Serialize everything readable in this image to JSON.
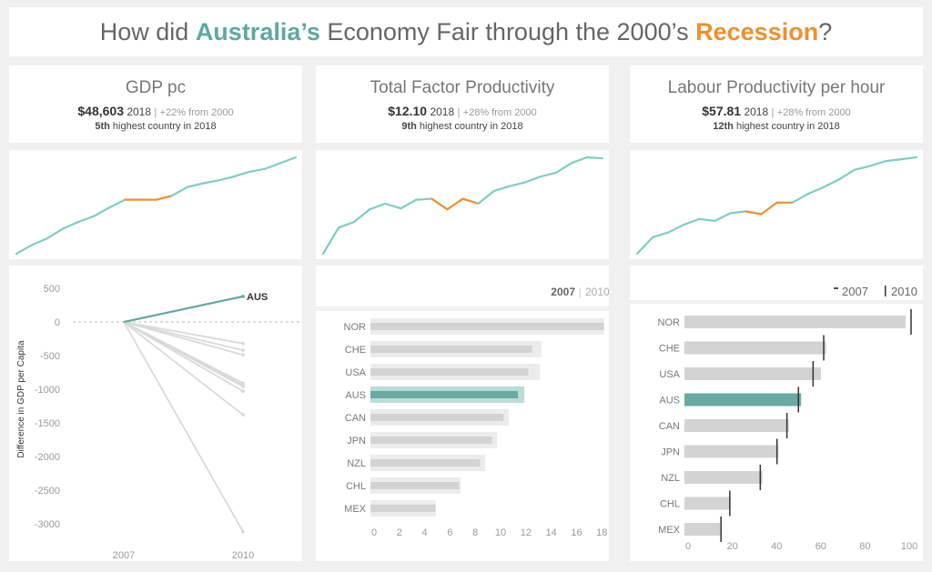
{
  "title": {
    "pre": "How did ",
    "country": "Australia’s",
    "mid": " Economy Fair through the 2000’s ",
    "recession": "Recession",
    "post": "?"
  },
  "colors": {
    "accent": "#5fa8a0",
    "line": "#7ecdc4",
    "recession": "#f28e2b",
    "grey": "#d3d3d3"
  },
  "kpis": [
    {
      "title": "GDP pc",
      "value": "$48,603",
      "year": "2018",
      "sep": "|",
      "change": "+22% from 2000",
      "rank": "5th",
      "rank_text": "highest country in 2018"
    },
    {
      "title": "Total Factor Productivity",
      "value": "$12.10",
      "year": "2018",
      "sep": "|",
      "change": "+28% from 2000",
      "rank": "9th",
      "rank_text": "highest country in 2018"
    },
    {
      "title": "Labour Productivity per hour",
      "value": "$57.81",
      "year": "2018",
      "sep": "|",
      "change": "+28% from 2000",
      "rank": "12th",
      "rank_text": "highest country in 2018"
    }
  ],
  "chart_data": [
    {
      "type": "line",
      "name": "GDP pc sparkline (relative index)",
      "x": [
        2000,
        2001,
        2002,
        2003,
        2004,
        2005,
        2006,
        2007,
        2008,
        2009,
        2010,
        2011,
        2012,
        2013,
        2014,
        2015,
        2016,
        2017,
        2018
      ],
      "values": [
        0,
        9,
        16,
        26,
        33,
        39,
        48,
        56,
        56,
        56,
        60,
        69,
        73,
        76,
        80,
        85,
        88,
        94,
        100
      ],
      "recession": [
        2007,
        2010
      ]
    },
    {
      "type": "line",
      "name": "TFP sparkline (relative index)",
      "x": [
        2000,
        2001,
        2002,
        2003,
        2004,
        2005,
        2006,
        2007,
        2008,
        2009,
        2010,
        2011,
        2012,
        2013,
        2014,
        2015,
        2016,
        2017,
        2018
      ],
      "values": [
        0,
        27,
        33,
        46,
        52,
        47,
        56,
        57,
        46,
        57,
        52,
        65,
        70,
        74,
        80,
        84,
        94,
        100,
        99
      ],
      "recession": [
        2007,
        2010
      ]
    },
    {
      "type": "line",
      "name": "Labour productivity sparkline (relative index)",
      "x": [
        2000,
        2001,
        2002,
        2003,
        2004,
        2005,
        2006,
        2007,
        2008,
        2009,
        2010,
        2011,
        2012,
        2013,
        2014,
        2015,
        2016,
        2017,
        2018
      ],
      "values": [
        0,
        17,
        22,
        30,
        36,
        34,
        42,
        44,
        41,
        53,
        53,
        62,
        69,
        77,
        87,
        91,
        96,
        98,
        100
      ],
      "recession": [
        2007,
        2010
      ]
    },
    {
      "type": "line",
      "name": "slope",
      "ylabel": "Difference in GDP per Capita",
      "categories": [
        "2007",
        "2010"
      ],
      "yticks": [
        500,
        0,
        -500,
        -1000,
        -1500,
        -2000,
        -2500,
        -3000
      ],
      "ylim": [
        -3300,
        650
      ],
      "series": [
        {
          "name": "AUS",
          "values": [
            0,
            380
          ],
          "highlight": true
        },
        {
          "values": [
            0,
            -320
          ]
        },
        {
          "values": [
            0,
            -420
          ]
        },
        {
          "values": [
            0,
            -490
          ]
        },
        {
          "values": [
            0,
            -910
          ]
        },
        {
          "values": [
            0,
            -940
          ]
        },
        {
          "values": [
            0,
            -960
          ]
        },
        {
          "values": [
            0,
            -1030
          ]
        },
        {
          "values": [
            0,
            -1380
          ]
        },
        {
          "values": [
            0,
            -3120
          ]
        }
      ]
    },
    {
      "type": "bar",
      "name": "tfp-bars",
      "legend": {
        "a": "2007",
        "sep": "|",
        "b": "2010"
      },
      "categories": [
        "NOR",
        "CHE",
        "USA",
        "AUS",
        "CAN",
        "JPN",
        "NZL",
        "CHL",
        "MEX"
      ],
      "highlight": "AUS",
      "xlim": [
        0,
        18
      ],
      "xticks": [
        0,
        2,
        4,
        6,
        8,
        10,
        12,
        14,
        16,
        18
      ],
      "series": [
        {
          "name": "2007",
          "values": [
            17.9,
            12.4,
            12.1,
            11.3,
            10.2,
            9.3,
            8.4,
            6.8,
            5.0
          ]
        },
        {
          "name": "2010",
          "values": [
            17.9,
            13.1,
            13.0,
            11.8,
            10.6,
            9.7,
            8.8,
            6.9,
            5.0
          ]
        }
      ]
    },
    {
      "type": "bar",
      "name": "lp-bars",
      "legend": {
        "a": "2007",
        "b": "2010"
      },
      "categories": [
        "NOR",
        "CHE",
        "USA",
        "AUS",
        "CAN",
        "JPN",
        "NZL",
        "CHL",
        "MEX"
      ],
      "highlight": "AUS",
      "xlim": [
        0,
        100
      ],
      "xticks": [
        0,
        20,
        40,
        60,
        80,
        100
      ],
      "series": [
        {
          "name": "2007",
          "values": [
            98,
            62.8,
            60.5,
            51.7,
            46.3,
            41.7,
            34.6,
            19.9,
            15.8
          ]
        },
        {
          "name": "2010",
          "values": [
            100.4,
            61.7,
            57,
            50.5,
            45.4,
            41,
            33.6,
            20.1,
            16.2
          ]
        }
      ]
    }
  ]
}
